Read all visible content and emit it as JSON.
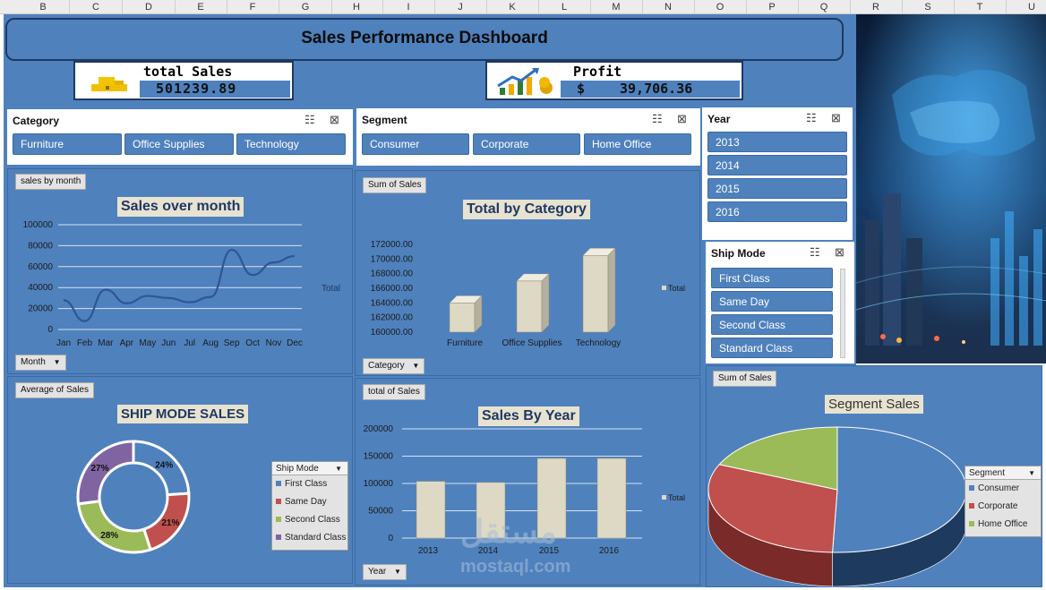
{
  "column_headers": [
    "B",
    "C",
    "D",
    "E",
    "F",
    "G",
    "H",
    "I",
    "J",
    "K",
    "L",
    "M",
    "N",
    "O",
    "P",
    "Q",
    "R",
    "S",
    "T",
    "U"
  ],
  "dashboard_title": "Sales Performance Dashboard",
  "kpis": {
    "total_sales": {
      "label": "total  Sales",
      "value": "501239.89"
    },
    "profit": {
      "label": "Profit",
      "currency": "$",
      "value": "39,706.36"
    }
  },
  "slicers": {
    "category": {
      "title": "Category",
      "items": [
        "Furniture",
        "Office Supplies",
        "Technology"
      ]
    },
    "segment": {
      "title": "Segment",
      "items": [
        "Consumer",
        "Corporate",
        "Home Office"
      ]
    },
    "year": {
      "title": "Year",
      "items": [
        "2013",
        "2014",
        "2015",
        "2016"
      ]
    },
    "ship_mode": {
      "title": "Ship Mode",
      "items": [
        "First Class",
        "Same Day",
        "Second Class",
        "Standard Class"
      ]
    }
  },
  "icons": {
    "multiselect": "multi-select-icon",
    "clear_filter": "clear-filter-icon",
    "dropdown": "dropdown-arrow-icon"
  },
  "colors": {
    "dashboard_bg": "#4f81bd",
    "bar_fill": "#ddd9c4",
    "donut_first": "#4f81bd",
    "donut_same": "#c0504d",
    "donut_second": "#9bbb59",
    "donut_standard": "#8064a2"
  },
  "chart_data": [
    {
      "type": "line",
      "field_button": "sales by month",
      "axis_button": "Month",
      "title": "Sales over month",
      "legend": [
        "Total"
      ],
      "categories": [
        "Jan",
        "Feb",
        "Mar",
        "Apr",
        "May",
        "Jun",
        "Jul",
        "Aug",
        "Sep",
        "Oct",
        "Nov",
        "Dec"
      ],
      "y_ticks": [
        "100000",
        "80000",
        "60000",
        "40000",
        "20000",
        "0"
      ],
      "ylim": [
        0,
        100000
      ],
      "values": [
        28000,
        8000,
        38000,
        25000,
        32000,
        30000,
        26000,
        31000,
        76000,
        52000,
        64000,
        70000
      ]
    },
    {
      "type": "bar",
      "field_button": "Sum of Sales",
      "axis_button": "Category",
      "title": "Total by Category",
      "legend": [
        "Total"
      ],
      "categories": [
        "Furniture",
        "Office Supplies",
        "Technology"
      ],
      "y_ticks": [
        "172000.00",
        "170000.00",
        "168000.00",
        "166000.00",
        "164000.00",
        "162000.00",
        "160000.00"
      ],
      "ylim": [
        160000,
        172000
      ],
      "values": [
        164000,
        167000,
        170500
      ]
    },
    {
      "type": "bar",
      "field_button": "total of Sales",
      "axis_button": "Year",
      "title": "Sales By Year",
      "legend": [
        "Total"
      ],
      "categories": [
        "2013",
        "2014",
        "2015",
        "2016"
      ],
      "y_ticks": [
        "200000",
        "150000",
        "100000",
        "50000",
        "0"
      ],
      "ylim": [
        0,
        200000
      ],
      "values": [
        104000,
        102000,
        146000,
        146000
      ]
    },
    {
      "type": "pie",
      "subtype": "donut",
      "field_button": "Average of Sales",
      "title": "SHIP MODE SALES",
      "legend_title": "Ship Mode",
      "labels": [
        "First Class",
        "Same Day",
        "Second Class",
        "Standard Class"
      ],
      "values": [
        24,
        21,
        28,
        27
      ],
      "value_labels": [
        "24%",
        "21%",
        "28%",
        "27%"
      ]
    },
    {
      "type": "pie",
      "subtype": "3d-pie",
      "field_button": "Sum of Sales",
      "title": "Segment Sales",
      "legend_title": "Segment",
      "labels": [
        "Consumer",
        "Corporate",
        "Home Office"
      ],
      "values": [
        50.6,
        31.0,
        18.4
      ]
    }
  ],
  "watermark": {
    "arabic": "مستقل",
    "latin": "mostaql.com"
  }
}
